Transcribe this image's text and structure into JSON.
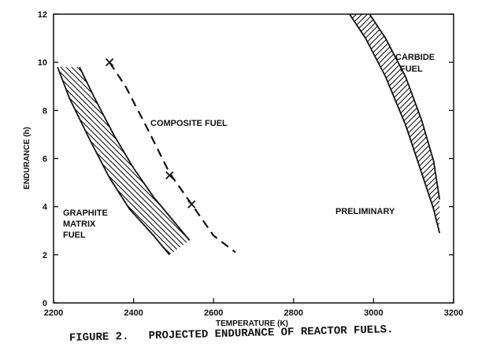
{
  "chart_data": {
    "type": "line",
    "xlabel": "TEMPERATURE (K)",
    "ylabel": "ENDURANCE (h)",
    "xlim": [
      2200,
      3200
    ],
    "ylim": [
      0,
      12
    ],
    "xticks": [
      2200,
      2400,
      2600,
      2800,
      3000,
      3200
    ],
    "yticks": [
      0,
      2,
      4,
      6,
      8,
      10,
      12
    ],
    "grid": false,
    "series": [
      {
        "name": "GRAPHITE MATRIX FUEL",
        "style": "hatched band",
        "lower_edge": [
          [
            2210,
            9.8
          ],
          [
            2240,
            8.5
          ],
          [
            2290,
            6.8
          ],
          [
            2340,
            5.2
          ],
          [
            2390,
            3.9
          ],
          [
            2450,
            2.8
          ],
          [
            2490,
            2.0
          ]
        ],
        "upper_edge": [
          [
            2265,
            9.8
          ],
          [
            2300,
            8.6
          ],
          [
            2350,
            7.0
          ],
          [
            2400,
            5.6
          ],
          [
            2450,
            4.4
          ],
          [
            2500,
            3.4
          ],
          [
            2540,
            2.6
          ]
        ]
      },
      {
        "name": "COMPOSITE FUEL",
        "style": "dashed",
        "points": [
          [
            2340,
            10.0
          ],
          [
            2380,
            9.0
          ],
          [
            2430,
            7.4
          ],
          [
            2490,
            5.4
          ],
          [
            2545,
            4.1
          ],
          [
            2600,
            2.8
          ],
          [
            2655,
            2.1
          ]
        ],
        "markers": [
          [
            2340,
            10.0
          ],
          [
            2490,
            5.3
          ],
          [
            2545,
            4.1
          ]
        ]
      },
      {
        "name": "CARBIDE FUEL",
        "style": "hatched band",
        "lower_edge": [
          [
            2940,
            12.0
          ],
          [
            2980,
            11.0
          ],
          [
            3030,
            9.4
          ],
          [
            3080,
            7.4
          ],
          [
            3120,
            5.4
          ],
          [
            3150,
            3.9
          ],
          [
            3165,
            2.9
          ]
        ],
        "upper_edge": [
          [
            2990,
            12.0
          ],
          [
            3030,
            11.0
          ],
          [
            3080,
            9.4
          ],
          [
            3120,
            7.6
          ],
          [
            3150,
            5.9
          ],
          [
            3165,
            4.3
          ]
        ]
      }
    ],
    "annotations": {
      "composite": "COMPOSITE FUEL",
      "graphite": [
        "GRAPHITE",
        "MATRIX",
        "FUEL"
      ],
      "carbide": [
        "CARBIDE",
        "FUEL"
      ],
      "preliminary": "PRELIMINARY"
    }
  },
  "caption": "FIGURE 2.   PROJECTED ENDURANCE OF REACTOR FUELS.",
  "colors": {
    "ink": "#111111",
    "background": "#ffffff"
  }
}
